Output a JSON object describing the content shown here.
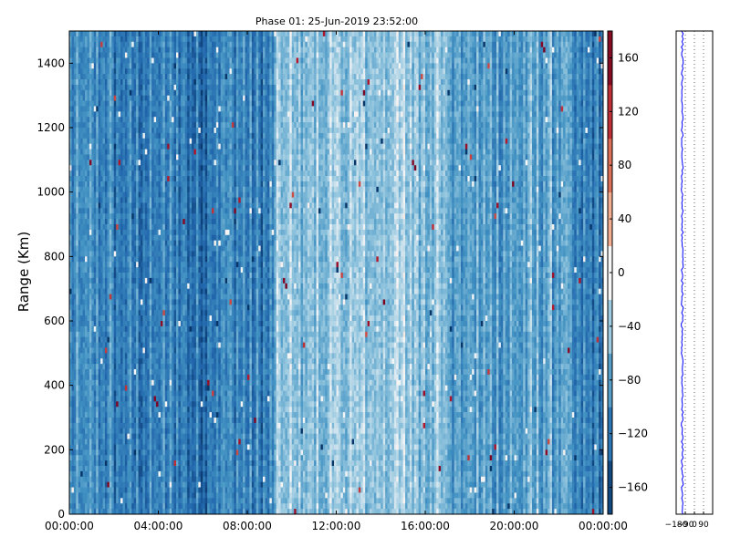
{
  "chart_data": [
    {
      "type": "heatmap",
      "title": "Phase 01: 25-Jun-2019 23:52:00",
      "xlabel": "",
      "ylabel": "Range (Km)",
      "x_ticks": [
        "00:00:00",
        "04:00:00",
        "08:00:00",
        "12:00:00",
        "16:00:00",
        "20:00:00",
        "00:00:00"
      ],
      "xlim_hours": [
        0,
        24
      ],
      "y_ticks": [
        0,
        200,
        400,
        600,
        800,
        1000,
        1200,
        1400
      ],
      "ylim": [
        0,
        1500
      ],
      "colorbar": {
        "colormap": "RdBu_r",
        "range": [
          -180,
          180
        ],
        "ticks": [
          -160,
          -120,
          -80,
          -40,
          0,
          40,
          80,
          120,
          160
        ]
      },
      "column_profile_phase_deg": [
        {
          "from_h": 0.0,
          "to_h": 2.0,
          "phase": -110
        },
        {
          "from_h": 2.0,
          "to_h": 4.2,
          "phase": -120
        },
        {
          "from_h": 4.2,
          "to_h": 5.3,
          "phase": -115
        },
        {
          "from_h": 5.3,
          "to_h": 6.2,
          "phase": -130
        },
        {
          "from_h": 6.2,
          "to_h": 8.0,
          "phase": -110
        },
        {
          "from_h": 8.0,
          "to_h": 9.2,
          "phase": -120
        },
        {
          "from_h": 9.2,
          "to_h": 12.0,
          "phase": -60
        },
        {
          "from_h": 12.0,
          "to_h": 14.0,
          "phase": -55
        },
        {
          "from_h": 14.0,
          "to_h": 15.5,
          "phase": -50
        },
        {
          "from_h": 15.5,
          "to_h": 17.0,
          "phase": -55
        },
        {
          "from_h": 17.0,
          "to_h": 20.5,
          "phase": -90
        },
        {
          "from_h": 20.5,
          "to_h": 22.5,
          "phase": -85
        },
        {
          "from_h": 22.5,
          "to_h": 24.0,
          "phase": -120
        }
      ]
    },
    {
      "type": "line",
      "title": "",
      "xlabel": "",
      "ylabel": "",
      "xlim": [
        -180,
        180
      ],
      "x_ticks": [
        -180,
        -90,
        0,
        90
      ],
      "ylim": [
        0,
        1500
      ],
      "grid": "vertical dotted",
      "series": [
        {
          "color": "#0000ff",
          "mean_phase": -120,
          "spread": 10
        }
      ]
    }
  ]
}
